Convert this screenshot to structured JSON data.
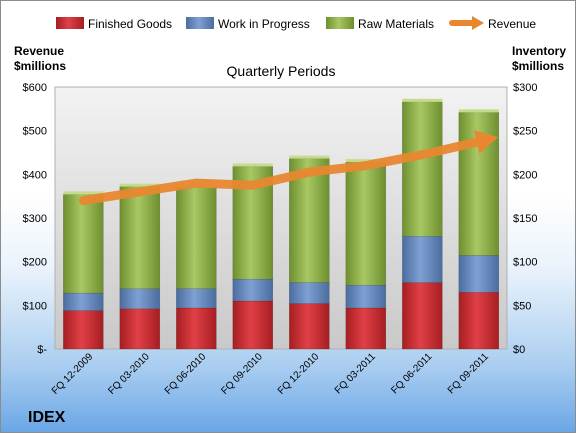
{
  "chart_data": {
    "type": "bar",
    "stacked": true,
    "title": "Quarterly Periods",
    "company": "IDEX",
    "left_axis": {
      "label_line1": "Revenue",
      "label_line2": "$millions",
      "range": [
        0,
        600
      ],
      "ticks": [
        "$-",
        "$100",
        "$200",
        "$300",
        "$400",
        "$500",
        "$600"
      ]
    },
    "right_axis": {
      "label_line1": "Inventory",
      "label_line2": "$millions",
      "range": [
        0,
        300
      ],
      "ticks": [
        "$0",
        "$50",
        "$100",
        "$150",
        "$200",
        "$250",
        "$300"
      ]
    },
    "categories": [
      "FQ 12-2009",
      "FQ 03-2010",
      "FQ 06-2010",
      "FQ 09-2010",
      "FQ 12-2010",
      "FQ 03-2011",
      "FQ 06-2011",
      "FQ 09-2011"
    ],
    "series": [
      {
        "name": "Finished Goods",
        "axis": "right",
        "color": "#c0282b",
        "values": [
          44,
          46,
          47,
          55,
          52,
          47,
          76,
          65
        ]
      },
      {
        "name": "Work in Progress",
        "axis": "right",
        "color": "#5a7fb5",
        "values": [
          20,
          23,
          22,
          25,
          24,
          26,
          53,
          42
        ]
      },
      {
        "name": "Raw Materials",
        "axis": "right",
        "color": "#8fb347",
        "values": [
          113,
          117,
          116,
          129,
          142,
          141,
          154,
          164
        ]
      },
      {
        "name": "Revenue",
        "axis": "left",
        "type": "line",
        "color": "#e8872f",
        "values": [
          340,
          360,
          380,
          375,
          405,
          420,
          445,
          475
        ]
      }
    ],
    "legend_position": "top",
    "grid": false
  }
}
